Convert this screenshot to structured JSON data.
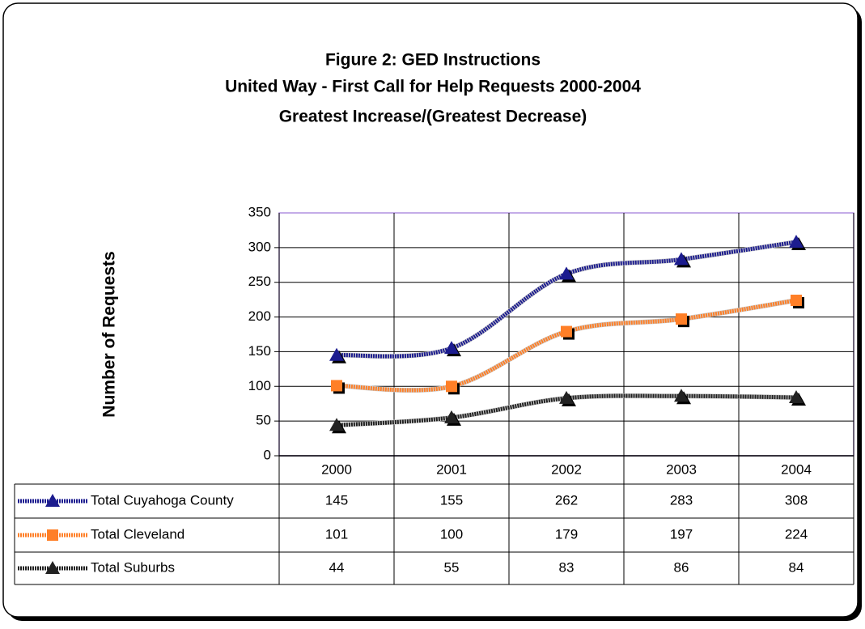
{
  "chart_data": {
    "type": "line",
    "title": [
      "Figure 2: GED Instructions",
      "United Way - First Call for Help Requests 2000-2004",
      "Greatest Increase/(Greatest Decrease)"
    ],
    "y_label": "Number of Requests",
    "categories": [
      "2000",
      "2001",
      "2002",
      "2003",
      "2004"
    ],
    "series": [
      {
        "name": "Total Cuyahoga County",
        "color": "#1c1c8f",
        "marker": "triangle",
        "values": [
          145,
          155,
          262,
          283,
          308
        ]
      },
      {
        "name": "Total Cleveland",
        "color": "#ff7f27",
        "marker": "square",
        "values": [
          101,
          100,
          179,
          197,
          224
        ]
      },
      {
        "name": "Total Suburbs",
        "color": "#222222",
        "marker": "triangle",
        "values": [
          44,
          55,
          83,
          86,
          84
        ]
      }
    ],
    "ylim": [
      0,
      350
    ],
    "yticks": [
      0,
      50,
      100,
      150,
      200,
      250,
      300,
      350
    ],
    "grid": true,
    "smooth": true,
    "data_table": true
  }
}
